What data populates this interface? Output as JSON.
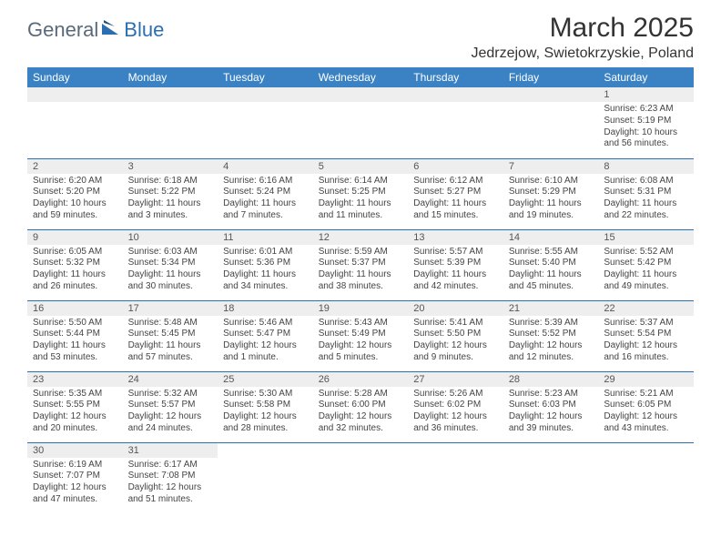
{
  "logo": {
    "word1": "General",
    "word2": "Blue"
  },
  "title": "March 2025",
  "location": "Jedrzejow, Swietokrzyskie, Poland",
  "header_bg": "#3b82c4",
  "border_color": "#2b6fb0",
  "daynum_bg": "#eeeeee",
  "days": [
    "Sunday",
    "Monday",
    "Tuesday",
    "Wednesday",
    "Thursday",
    "Friday",
    "Saturday"
  ],
  "weeks": [
    [
      null,
      null,
      null,
      null,
      null,
      null,
      {
        "n": "1",
        "sr": "Sunrise: 6:23 AM",
        "ss": "Sunset: 5:19 PM",
        "d1": "Daylight: 10 hours",
        "d2": "and 56 minutes."
      }
    ],
    [
      {
        "n": "2",
        "sr": "Sunrise: 6:20 AM",
        "ss": "Sunset: 5:20 PM",
        "d1": "Daylight: 10 hours",
        "d2": "and 59 minutes."
      },
      {
        "n": "3",
        "sr": "Sunrise: 6:18 AM",
        "ss": "Sunset: 5:22 PM",
        "d1": "Daylight: 11 hours",
        "d2": "and 3 minutes."
      },
      {
        "n": "4",
        "sr": "Sunrise: 6:16 AM",
        "ss": "Sunset: 5:24 PM",
        "d1": "Daylight: 11 hours",
        "d2": "and 7 minutes."
      },
      {
        "n": "5",
        "sr": "Sunrise: 6:14 AM",
        "ss": "Sunset: 5:25 PM",
        "d1": "Daylight: 11 hours",
        "d2": "and 11 minutes."
      },
      {
        "n": "6",
        "sr": "Sunrise: 6:12 AM",
        "ss": "Sunset: 5:27 PM",
        "d1": "Daylight: 11 hours",
        "d2": "and 15 minutes."
      },
      {
        "n": "7",
        "sr": "Sunrise: 6:10 AM",
        "ss": "Sunset: 5:29 PM",
        "d1": "Daylight: 11 hours",
        "d2": "and 19 minutes."
      },
      {
        "n": "8",
        "sr": "Sunrise: 6:08 AM",
        "ss": "Sunset: 5:31 PM",
        "d1": "Daylight: 11 hours",
        "d2": "and 22 minutes."
      }
    ],
    [
      {
        "n": "9",
        "sr": "Sunrise: 6:05 AM",
        "ss": "Sunset: 5:32 PM",
        "d1": "Daylight: 11 hours",
        "d2": "and 26 minutes."
      },
      {
        "n": "10",
        "sr": "Sunrise: 6:03 AM",
        "ss": "Sunset: 5:34 PM",
        "d1": "Daylight: 11 hours",
        "d2": "and 30 minutes."
      },
      {
        "n": "11",
        "sr": "Sunrise: 6:01 AM",
        "ss": "Sunset: 5:36 PM",
        "d1": "Daylight: 11 hours",
        "d2": "and 34 minutes."
      },
      {
        "n": "12",
        "sr": "Sunrise: 5:59 AM",
        "ss": "Sunset: 5:37 PM",
        "d1": "Daylight: 11 hours",
        "d2": "and 38 minutes."
      },
      {
        "n": "13",
        "sr": "Sunrise: 5:57 AM",
        "ss": "Sunset: 5:39 PM",
        "d1": "Daylight: 11 hours",
        "d2": "and 42 minutes."
      },
      {
        "n": "14",
        "sr": "Sunrise: 5:55 AM",
        "ss": "Sunset: 5:40 PM",
        "d1": "Daylight: 11 hours",
        "d2": "and 45 minutes."
      },
      {
        "n": "15",
        "sr": "Sunrise: 5:52 AM",
        "ss": "Sunset: 5:42 PM",
        "d1": "Daylight: 11 hours",
        "d2": "and 49 minutes."
      }
    ],
    [
      {
        "n": "16",
        "sr": "Sunrise: 5:50 AM",
        "ss": "Sunset: 5:44 PM",
        "d1": "Daylight: 11 hours",
        "d2": "and 53 minutes."
      },
      {
        "n": "17",
        "sr": "Sunrise: 5:48 AM",
        "ss": "Sunset: 5:45 PM",
        "d1": "Daylight: 11 hours",
        "d2": "and 57 minutes."
      },
      {
        "n": "18",
        "sr": "Sunrise: 5:46 AM",
        "ss": "Sunset: 5:47 PM",
        "d1": "Daylight: 12 hours",
        "d2": "and 1 minute."
      },
      {
        "n": "19",
        "sr": "Sunrise: 5:43 AM",
        "ss": "Sunset: 5:49 PM",
        "d1": "Daylight: 12 hours",
        "d2": "and 5 minutes."
      },
      {
        "n": "20",
        "sr": "Sunrise: 5:41 AM",
        "ss": "Sunset: 5:50 PM",
        "d1": "Daylight: 12 hours",
        "d2": "and 9 minutes."
      },
      {
        "n": "21",
        "sr": "Sunrise: 5:39 AM",
        "ss": "Sunset: 5:52 PM",
        "d1": "Daylight: 12 hours",
        "d2": "and 12 minutes."
      },
      {
        "n": "22",
        "sr": "Sunrise: 5:37 AM",
        "ss": "Sunset: 5:54 PM",
        "d1": "Daylight: 12 hours",
        "d2": "and 16 minutes."
      }
    ],
    [
      {
        "n": "23",
        "sr": "Sunrise: 5:35 AM",
        "ss": "Sunset: 5:55 PM",
        "d1": "Daylight: 12 hours",
        "d2": "and 20 minutes."
      },
      {
        "n": "24",
        "sr": "Sunrise: 5:32 AM",
        "ss": "Sunset: 5:57 PM",
        "d1": "Daylight: 12 hours",
        "d2": "and 24 minutes."
      },
      {
        "n": "25",
        "sr": "Sunrise: 5:30 AM",
        "ss": "Sunset: 5:58 PM",
        "d1": "Daylight: 12 hours",
        "d2": "and 28 minutes."
      },
      {
        "n": "26",
        "sr": "Sunrise: 5:28 AM",
        "ss": "Sunset: 6:00 PM",
        "d1": "Daylight: 12 hours",
        "d2": "and 32 minutes."
      },
      {
        "n": "27",
        "sr": "Sunrise: 5:26 AM",
        "ss": "Sunset: 6:02 PM",
        "d1": "Daylight: 12 hours",
        "d2": "and 36 minutes."
      },
      {
        "n": "28",
        "sr": "Sunrise: 5:23 AM",
        "ss": "Sunset: 6:03 PM",
        "d1": "Daylight: 12 hours",
        "d2": "and 39 minutes."
      },
      {
        "n": "29",
        "sr": "Sunrise: 5:21 AM",
        "ss": "Sunset: 6:05 PM",
        "d1": "Daylight: 12 hours",
        "d2": "and 43 minutes."
      }
    ],
    [
      {
        "n": "30",
        "sr": "Sunrise: 6:19 AM",
        "ss": "Sunset: 7:07 PM",
        "d1": "Daylight: 12 hours",
        "d2": "and 47 minutes."
      },
      {
        "n": "31",
        "sr": "Sunrise: 6:17 AM",
        "ss": "Sunset: 7:08 PM",
        "d1": "Daylight: 12 hours",
        "d2": "and 51 minutes."
      },
      null,
      null,
      null,
      null,
      null
    ]
  ]
}
